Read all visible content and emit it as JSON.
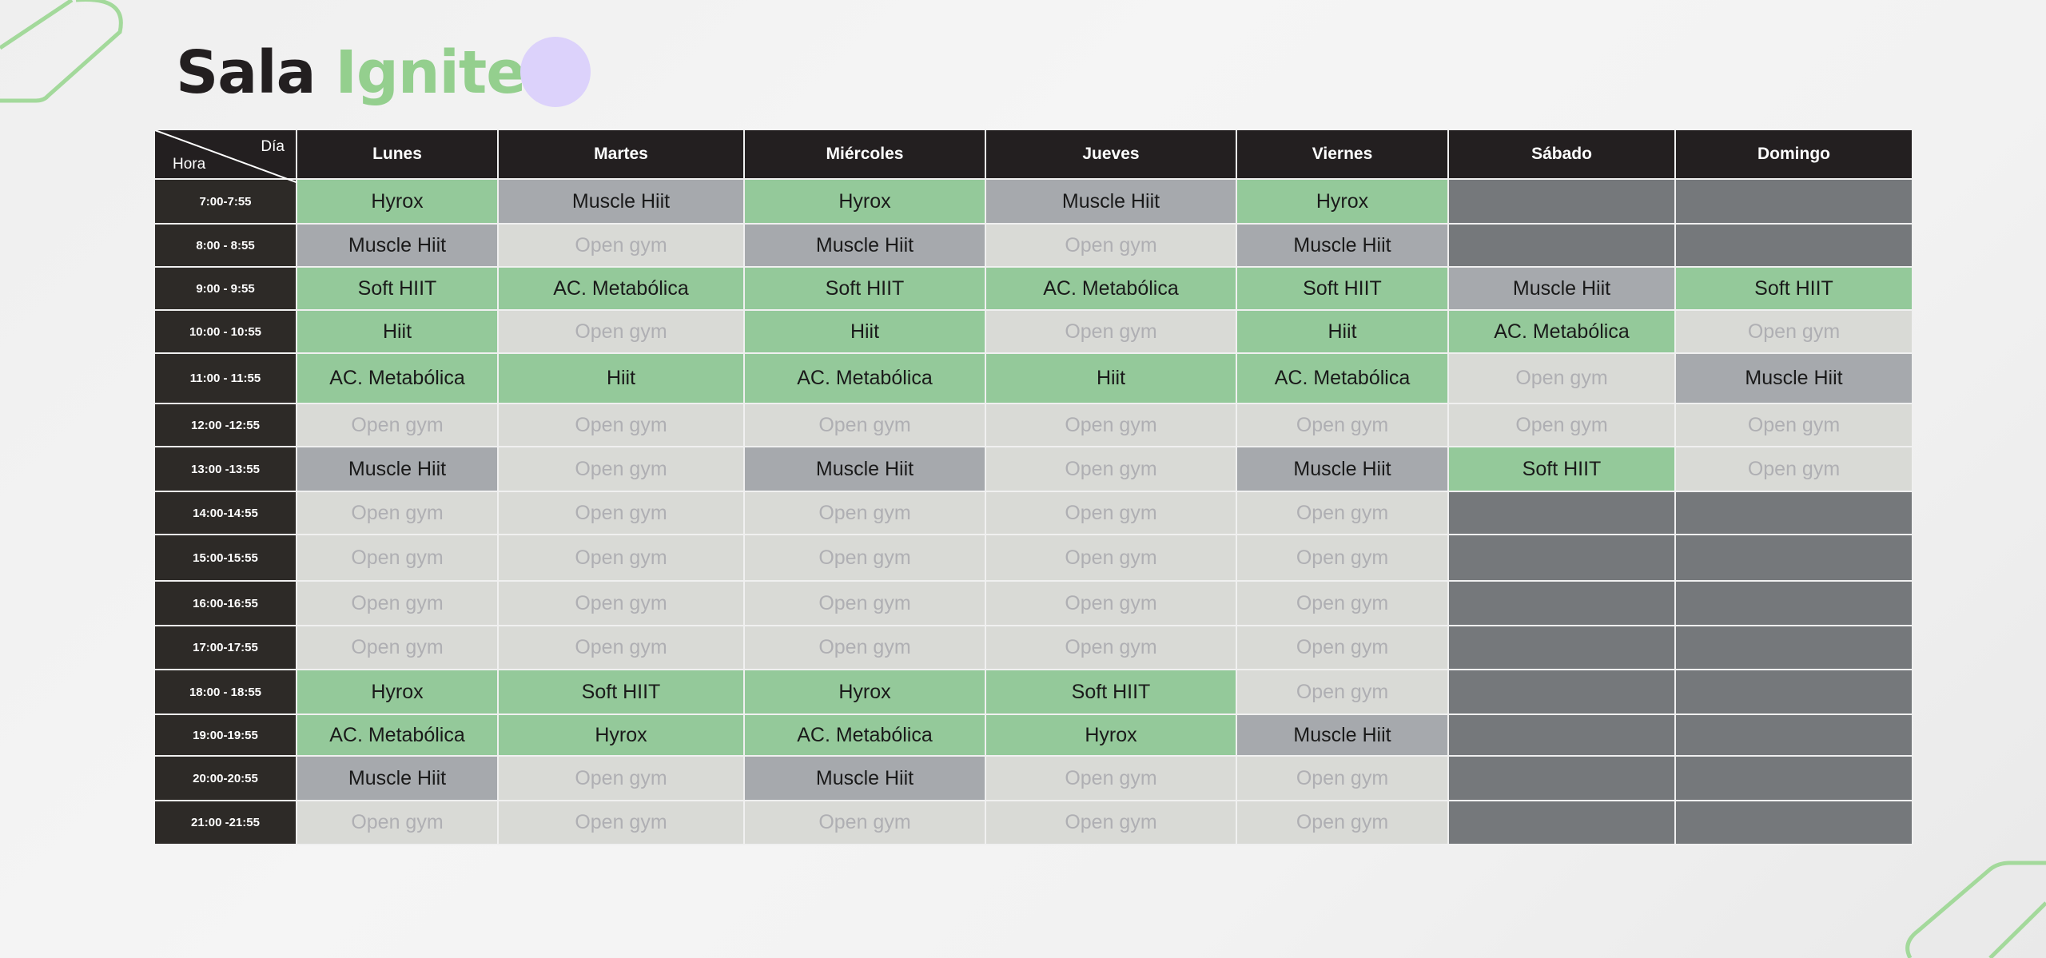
{
  "title": {
    "word1": "Sala",
    "word2": "Ignite"
  },
  "colors": {
    "accent_green": "#94c99a",
    "muscle_gray": "#a6a9ad",
    "open_gray": "#d9dad6",
    "closed_gray": "#75787b",
    "header_dark": "#231f20",
    "purple_dot": "#dcd2fb"
  },
  "corner": {
    "day_label": "Día",
    "hour_label": "Hora"
  },
  "days": [
    "Lunes",
    "Martes",
    "Miércoles",
    "Jueves",
    "Viernes",
    "Sábado",
    "Domingo"
  ],
  "rows": [
    {
      "time": "7:00-7:55",
      "cells": [
        [
          "Hyrox",
          "class"
        ],
        [
          "Muscle Hiit",
          "muscle"
        ],
        [
          "Hyrox",
          "class"
        ],
        [
          "Muscle Hiit",
          "muscle"
        ],
        [
          "Hyrox",
          "class"
        ],
        [
          "",
          "closed"
        ],
        [
          "",
          "closed"
        ]
      ]
    },
    {
      "time": "8:00 - 8:55",
      "cells": [
        [
          "Muscle Hiit",
          "muscle"
        ],
        [
          "Open gym",
          "open"
        ],
        [
          "Muscle Hiit",
          "muscle"
        ],
        [
          "Open gym",
          "open"
        ],
        [
          "Muscle Hiit",
          "muscle"
        ],
        [
          "",
          "closed"
        ],
        [
          "",
          "closed"
        ]
      ]
    },
    {
      "time": "9:00 - 9:55",
      "cells": [
        [
          "Soft HIIT",
          "class"
        ],
        [
          "AC. Metabólica",
          "class"
        ],
        [
          "Soft HIIT",
          "class"
        ],
        [
          "AC. Metabólica",
          "class"
        ],
        [
          "Soft HIIT",
          "class"
        ],
        [
          "Muscle Hiit",
          "muscle"
        ],
        [
          "Soft HIIT",
          "class"
        ]
      ]
    },
    {
      "time": "10:00 - 10:55",
      "cells": [
        [
          "Hiit",
          "class"
        ],
        [
          "Open gym",
          "open"
        ],
        [
          "Hiit",
          "class"
        ],
        [
          "Open gym",
          "open"
        ],
        [
          "Hiit",
          "class"
        ],
        [
          "AC. Metabólica",
          "class"
        ],
        [
          "Open gym",
          "open"
        ]
      ]
    },
    {
      "time": "11:00 - 11:55",
      "cells": [
        [
          "AC. Metabólica",
          "class"
        ],
        [
          "Hiit",
          "class"
        ],
        [
          "AC. Metabólica",
          "class"
        ],
        [
          "Hiit",
          "class"
        ],
        [
          "AC. Metabólica",
          "class"
        ],
        [
          "Open gym",
          "open"
        ],
        [
          "Muscle Hiit",
          "muscle"
        ]
      ]
    },
    {
      "time": "12:00 -12:55",
      "cells": [
        [
          "Open gym",
          "open"
        ],
        [
          "Open gym",
          "open"
        ],
        [
          "Open gym",
          "open"
        ],
        [
          "Open gym",
          "open"
        ],
        [
          "Open gym",
          "open"
        ],
        [
          "Open gym",
          "open"
        ],
        [
          "Open gym",
          "open"
        ]
      ]
    },
    {
      "time": "13:00 -13:55",
      "cells": [
        [
          "Muscle Hiit",
          "muscle"
        ],
        [
          "Open gym",
          "open"
        ],
        [
          "Muscle Hiit",
          "muscle"
        ],
        [
          "Open gym",
          "open"
        ],
        [
          "Muscle Hiit",
          "muscle"
        ],
        [
          "Soft HIIT",
          "class"
        ],
        [
          "Open gym",
          "open"
        ]
      ]
    },
    {
      "time": "14:00-14:55",
      "cells": [
        [
          "Open gym",
          "open"
        ],
        [
          "Open gym",
          "open"
        ],
        [
          "Open gym",
          "open"
        ],
        [
          "Open gym",
          "open"
        ],
        [
          "Open gym",
          "open"
        ],
        [
          "",
          "closed"
        ],
        [
          "",
          "closed"
        ]
      ]
    },
    {
      "time": "15:00-15:55",
      "cells": [
        [
          "Open gym",
          "open"
        ],
        [
          "Open gym",
          "open"
        ],
        [
          "Open gym",
          "open"
        ],
        [
          "Open gym",
          "open"
        ],
        [
          "Open gym",
          "open"
        ],
        [
          "",
          "closed"
        ],
        [
          "",
          "closed"
        ]
      ]
    },
    {
      "time": "16:00-16:55",
      "cells": [
        [
          "Open gym",
          "open"
        ],
        [
          "Open gym",
          "open"
        ],
        [
          "Open gym",
          "open"
        ],
        [
          "Open gym",
          "open"
        ],
        [
          "Open gym",
          "open"
        ],
        [
          "",
          "closed"
        ],
        [
          "",
          "closed"
        ]
      ]
    },
    {
      "time": "17:00-17:55",
      "cells": [
        [
          "Open gym",
          "open"
        ],
        [
          "Open gym",
          "open"
        ],
        [
          "Open gym",
          "open"
        ],
        [
          "Open gym",
          "open"
        ],
        [
          "Open gym",
          "open"
        ],
        [
          "",
          "closed"
        ],
        [
          "",
          "closed"
        ]
      ]
    },
    {
      "time": "18:00 - 18:55",
      "cells": [
        [
          "Hyrox",
          "class"
        ],
        [
          "Soft HIIT",
          "class"
        ],
        [
          "Hyrox",
          "class"
        ],
        [
          "Soft HIIT",
          "class"
        ],
        [
          "Open gym",
          "open"
        ],
        [
          "",
          "closed"
        ],
        [
          "",
          "closed"
        ]
      ]
    },
    {
      "time": "19:00-19:55",
      "cells": [
        [
          "AC. Metabólica",
          "class"
        ],
        [
          "Hyrox",
          "class"
        ],
        [
          "AC. Metabólica",
          "class"
        ],
        [
          "Hyrox",
          "class"
        ],
        [
          "Muscle Hiit",
          "muscle"
        ],
        [
          "",
          "closed"
        ],
        [
          "",
          "closed"
        ]
      ]
    },
    {
      "time": "20:00-20:55",
      "cells": [
        [
          "Muscle Hiit",
          "muscle"
        ],
        [
          "Open gym",
          "open"
        ],
        [
          "Muscle Hiit",
          "muscle"
        ],
        [
          "Open gym",
          "open"
        ],
        [
          "Open gym",
          "open"
        ],
        [
          "",
          "closed"
        ],
        [
          "",
          "closed"
        ]
      ]
    },
    {
      "time": "21:00 -21:55",
      "cells": [
        [
          "Open gym",
          "open"
        ],
        [
          "Open gym",
          "open"
        ],
        [
          "Open gym",
          "open"
        ],
        [
          "Open gym",
          "open"
        ],
        [
          "Open gym",
          "open"
        ],
        [
          "",
          "closed"
        ],
        [
          "",
          "closed"
        ]
      ]
    }
  ]
}
